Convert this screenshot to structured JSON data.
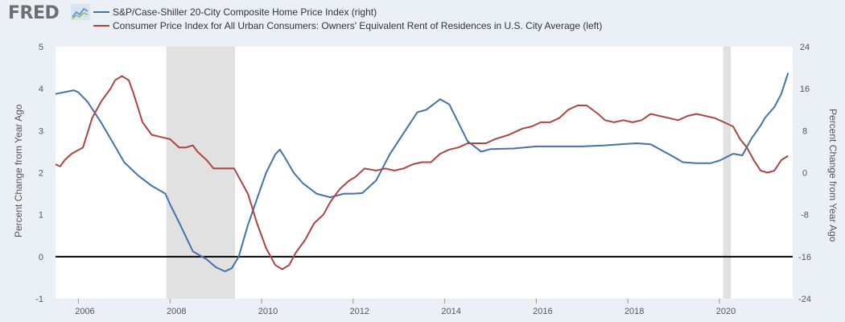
{
  "brand": {
    "logo_text": "FRED",
    "logo_icon": "chart-line-icon"
  },
  "colors": {
    "series_blue": "#4572a7",
    "series_red": "#aa4643",
    "recession": "#e1e1e1",
    "plot_bg": "#ffffff",
    "page_bg": "#eaf0f6"
  },
  "chart_data": {
    "type": "line",
    "xlim": [
      2005.5,
      2021.6
    ],
    "x_ticks": [
      "2006",
      "2008",
      "2010",
      "2012",
      "2014",
      "2016",
      "2018",
      "2020"
    ],
    "left_axis": {
      "label": "Percent Change from Year Ago",
      "ylim": [
        -1,
        5
      ],
      "ticks": [
        "-1",
        "0",
        "1",
        "2",
        "3",
        "4",
        "5"
      ]
    },
    "right_axis": {
      "label": "Percent Change from Year Ago",
      "ylim": [
        -24,
        24
      ],
      "ticks": [
        "-24",
        "-16",
        "-8",
        "0",
        "8",
        "16",
        "24"
      ]
    },
    "recessions": [
      [
        2007.92,
        2009.42
      ],
      [
        2020.08,
        2020.25
      ]
    ],
    "series": [
      {
        "name": "S&P/Case-Shiller 20-City Composite Home Price Index (right)",
        "axis": "right",
        "color": "#4572a7",
        "points": [
          [
            2005.5,
            15
          ],
          [
            2005.9,
            15.7
          ],
          [
            2006.0,
            15.3
          ],
          [
            2006.2,
            13.5
          ],
          [
            2006.5,
            9.5
          ],
          [
            2006.8,
            5
          ],
          [
            2007.0,
            2
          ],
          [
            2007.3,
            -0.5
          ],
          [
            2007.6,
            -2.5
          ],
          [
            2007.9,
            -4
          ],
          [
            2008.0,
            -6
          ],
          [
            2008.2,
            -9.5
          ],
          [
            2008.5,
            -15
          ],
          [
            2008.8,
            -16.5
          ],
          [
            2009.0,
            -18
          ],
          [
            2009.2,
            -18.8
          ],
          [
            2009.35,
            -18.2
          ],
          [
            2009.5,
            -16
          ],
          [
            2009.7,
            -10
          ],
          [
            2009.9,
            -5
          ],
          [
            2010.1,
            0
          ],
          [
            2010.3,
            3.5
          ],
          [
            2010.4,
            4.4
          ],
          [
            2010.5,
            3
          ],
          [
            2010.7,
            0
          ],
          [
            2010.9,
            -2
          ],
          [
            2011.2,
            -4
          ],
          [
            2011.5,
            -4.7
          ],
          [
            2011.8,
            -4
          ],
          [
            2012.0,
            -4
          ],
          [
            2012.2,
            -3.9
          ],
          [
            2012.5,
            -1.5
          ],
          [
            2012.8,
            3.5
          ],
          [
            2013.1,
            7.5
          ],
          [
            2013.4,
            11.5
          ],
          [
            2013.6,
            12
          ],
          [
            2013.9,
            14
          ],
          [
            2014.1,
            13
          ],
          [
            2014.3,
            9.5
          ],
          [
            2014.5,
            6
          ],
          [
            2014.8,
            4
          ],
          [
            2015.0,
            4.5
          ],
          [
            2015.5,
            4.6
          ],
          [
            2016.0,
            5
          ],
          [
            2016.5,
            5
          ],
          [
            2017.0,
            5
          ],
          [
            2017.5,
            5.2
          ],
          [
            2018.0,
            5.5
          ],
          [
            2018.2,
            5.6
          ],
          [
            2018.5,
            5.4
          ],
          [
            2019.0,
            3
          ],
          [
            2019.2,
            2
          ],
          [
            2019.5,
            1.8
          ],
          [
            2019.8,
            1.8
          ],
          [
            2020.0,
            2.3
          ],
          [
            2020.3,
            3.6
          ],
          [
            2020.5,
            3.3
          ],
          [
            2020.7,
            6.5
          ],
          [
            2020.9,
            9
          ],
          [
            2021.0,
            10.5
          ],
          [
            2021.2,
            12.5
          ],
          [
            2021.35,
            15
          ],
          [
            2021.5,
            19
          ]
        ]
      },
      {
        "name": "Consumer Price Index for All Urban Consumers: Owners' Equivalent Rent of Residences in U.S. City Average (left)",
        "axis": "left",
        "color": "#aa4643",
        "points": [
          [
            2005.5,
            2.2
          ],
          [
            2005.6,
            2.15
          ],
          [
            2005.7,
            2.3
          ],
          [
            2005.85,
            2.45
          ],
          [
            2006.1,
            2.6
          ],
          [
            2006.3,
            3.3
          ],
          [
            2006.5,
            3.7
          ],
          [
            2006.7,
            4.0
          ],
          [
            2006.8,
            4.2
          ],
          [
            2006.95,
            4.3
          ],
          [
            2007.1,
            4.2
          ],
          [
            2007.2,
            3.9
          ],
          [
            2007.4,
            3.2
          ],
          [
            2007.6,
            2.9
          ],
          [
            2007.8,
            2.85
          ],
          [
            2008.0,
            2.8
          ],
          [
            2008.2,
            2.6
          ],
          [
            2008.35,
            2.6
          ],
          [
            2008.5,
            2.65
          ],
          [
            2008.6,
            2.5
          ],
          [
            2008.8,
            2.3
          ],
          [
            2008.95,
            2.1
          ],
          [
            2009.2,
            2.1
          ],
          [
            2009.4,
            2.1
          ],
          [
            2009.55,
            1.8
          ],
          [
            2009.7,
            1.5
          ],
          [
            2009.9,
            0.8
          ],
          [
            2010.1,
            0.2
          ],
          [
            2010.3,
            -0.2
          ],
          [
            2010.45,
            -0.3
          ],
          [
            2010.6,
            -0.2
          ],
          [
            2010.75,
            0.1
          ],
          [
            2010.95,
            0.4
          ],
          [
            2011.15,
            0.8
          ],
          [
            2011.35,
            1.0
          ],
          [
            2011.5,
            1.3
          ],
          [
            2011.7,
            1.6
          ],
          [
            2011.9,
            1.8
          ],
          [
            2012.05,
            1.9
          ],
          [
            2012.25,
            2.1
          ],
          [
            2012.5,
            2.05
          ],
          [
            2012.7,
            2.1
          ],
          [
            2012.9,
            2.05
          ],
          [
            2013.1,
            2.1
          ],
          [
            2013.3,
            2.2
          ],
          [
            2013.5,
            2.25
          ],
          [
            2013.7,
            2.25
          ],
          [
            2013.9,
            2.45
          ],
          [
            2014.1,
            2.55
          ],
          [
            2014.3,
            2.6
          ],
          [
            2014.5,
            2.7
          ],
          [
            2014.7,
            2.7
          ],
          [
            2014.9,
            2.7
          ],
          [
            2015.1,
            2.8
          ],
          [
            2015.4,
            2.9
          ],
          [
            2015.7,
            3.05
          ],
          [
            2015.9,
            3.1
          ],
          [
            2016.1,
            3.2
          ],
          [
            2016.3,
            3.2
          ],
          [
            2016.5,
            3.3
          ],
          [
            2016.7,
            3.5
          ],
          [
            2016.9,
            3.6
          ],
          [
            2017.1,
            3.6
          ],
          [
            2017.35,
            3.4
          ],
          [
            2017.5,
            3.25
          ],
          [
            2017.7,
            3.2
          ],
          [
            2017.9,
            3.25
          ],
          [
            2018.1,
            3.2
          ],
          [
            2018.3,
            3.25
          ],
          [
            2018.5,
            3.4
          ],
          [
            2018.7,
            3.35
          ],
          [
            2018.9,
            3.3
          ],
          [
            2019.1,
            3.25
          ],
          [
            2019.3,
            3.35
          ],
          [
            2019.5,
            3.4
          ],
          [
            2019.7,
            3.35
          ],
          [
            2019.9,
            3.3
          ],
          [
            2020.1,
            3.2
          ],
          [
            2020.3,
            3.1
          ],
          [
            2020.45,
            2.8
          ],
          [
            2020.6,
            2.6
          ],
          [
            2020.75,
            2.3
          ],
          [
            2020.9,
            2.05
          ],
          [
            2021.05,
            2.0
          ],
          [
            2021.2,
            2.05
          ],
          [
            2021.35,
            2.3
          ],
          [
            2021.5,
            2.4
          ]
        ]
      }
    ],
    "zero_line_left": 0
  }
}
